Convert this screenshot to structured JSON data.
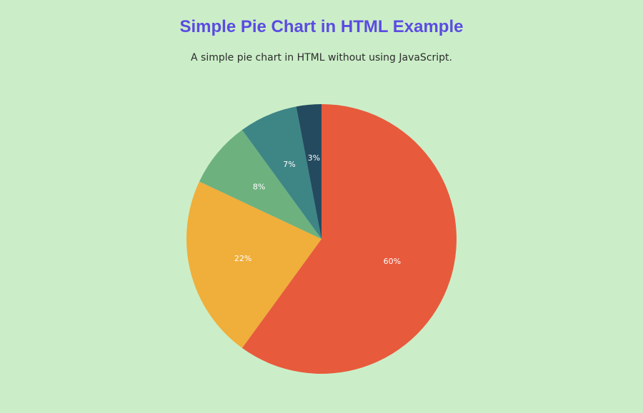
{
  "header": {
    "title": "Simple Pie Chart in HTML Example",
    "subtitle": "A simple pie chart in HTML without using JavaScript."
  },
  "chart_data": {
    "type": "pie",
    "title": "Simple Pie Chart in HTML Example",
    "subtitle": "A simple pie chart in HTML without using JavaScript.",
    "start_angle": "top, clockwise",
    "slices": [
      {
        "label": "60%",
        "value": 60,
        "color": "#e85a3c"
      },
      {
        "label": "22%",
        "value": 22,
        "color": "#f0ae3a"
      },
      {
        "label": "8%",
        "value": 8,
        "color": "#6db17f"
      },
      {
        "label": "7%",
        "value": 7,
        "color": "#3e8586"
      },
      {
        "label": "3%",
        "value": 3,
        "color": "#244a5f"
      }
    ]
  }
}
